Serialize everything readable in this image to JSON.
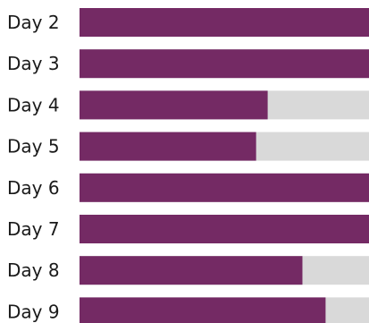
{
  "chart_data": {
    "type": "bar",
    "orientation": "horizontal",
    "categories": [
      "Day 2",
      "Day 3",
      "Day 4",
      "Day 5",
      "Day 6",
      "Day 7",
      "Day 8",
      "Day 9"
    ],
    "values": [
      100,
      100,
      65,
      61,
      100,
      100,
      77,
      85
    ],
    "xlim": [
      0,
      100
    ],
    "grid": false,
    "legend": "none",
    "colors": {
      "bar": "#742a64",
      "track": "#d9d9d9"
    }
  }
}
